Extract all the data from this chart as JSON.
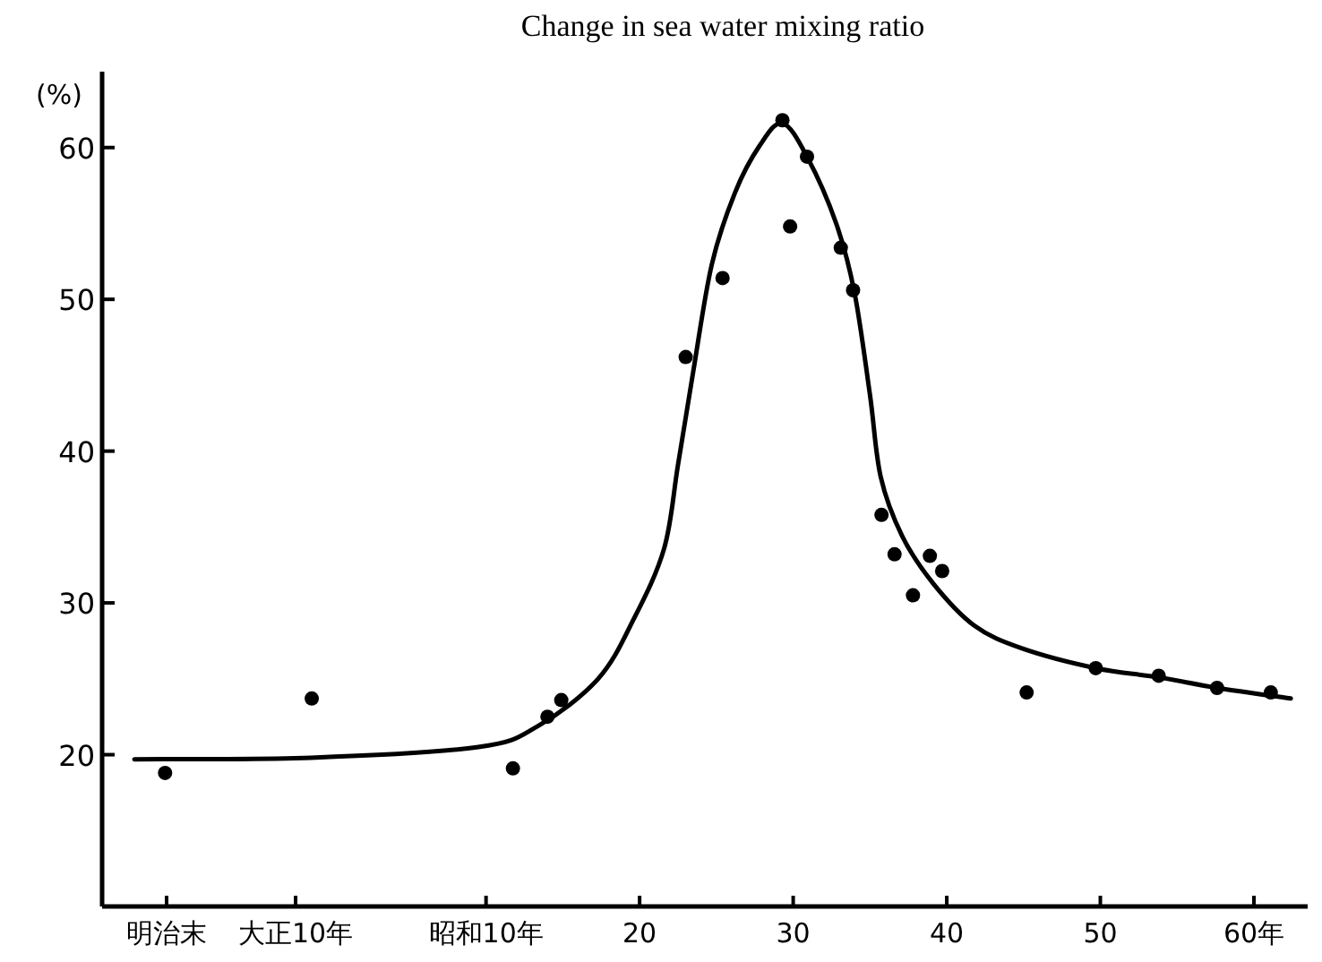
{
  "chart_data": {
    "type": "scatter",
    "title": "Change in sea water mixing ratio",
    "ylabel": "(%)",
    "xlim": [
      -15,
      63.5
    ],
    "ylim": [
      10,
      65
    ],
    "xticks": [
      {
        "value": -10.8,
        "label": "明治末"
      },
      {
        "value": -2.4,
        "label": "大正10年"
      },
      {
        "value": 10,
        "label": "昭和10年"
      },
      {
        "value": 20,
        "label": "20"
      },
      {
        "value": 30,
        "label": "30"
      },
      {
        "value": 40,
        "label": "40"
      },
      {
        "value": 50,
        "label": "50"
      },
      {
        "value": 60,
        "label": "60年"
      }
    ],
    "yticks": [
      20,
      30,
      40,
      50,
      60
    ],
    "series": [
      {
        "marker": "circle",
        "color": "#000000",
        "x": [
          -10.9,
          -1.35,
          11.75,
          14.0,
          14.9,
          23.0,
          25.4,
          29.3,
          30.9,
          29.8,
          33.1,
          33.9,
          35.75,
          36.6,
          38.9,
          39.7,
          37.8,
          45.2,
          49.7,
          53.8,
          57.6,
          61.1
        ],
        "values": [
          18.8,
          23.7,
          19.1,
          22.5,
          23.6,
          46.2,
          51.4,
          61.8,
          59.4,
          54.8,
          53.4,
          50.6,
          35.8,
          33.2,
          33.1,
          32.1,
          30.5,
          24.1,
          25.7,
          25.2,
          24.4,
          24.1
        ]
      },
      {
        "type": "line",
        "marker": "none",
        "color": "#000000",
        "x": [
          -12.9,
          -1.4,
          9.5,
          13.4,
          17.3,
          19.6,
          21.6,
          22.5,
          23.5,
          24.7,
          26.2,
          27.8,
          29.3,
          30.9,
          32.8,
          34.0,
          35.0,
          35.7,
          37.1,
          39.1,
          41.8,
          44.9,
          49.7,
          53.8,
          57.6,
          62.4
        ],
        "values": [
          19.7,
          19.8,
          20.5,
          21.9,
          25.0,
          28.9,
          33.6,
          39.1,
          45.3,
          52.3,
          57.0,
          60.1,
          61.6,
          59.4,
          55.0,
          50.4,
          43.7,
          38.3,
          34.4,
          31.3,
          28.5,
          27.0,
          25.7,
          25.1,
          24.4,
          23.7
        ]
      }
    ]
  }
}
